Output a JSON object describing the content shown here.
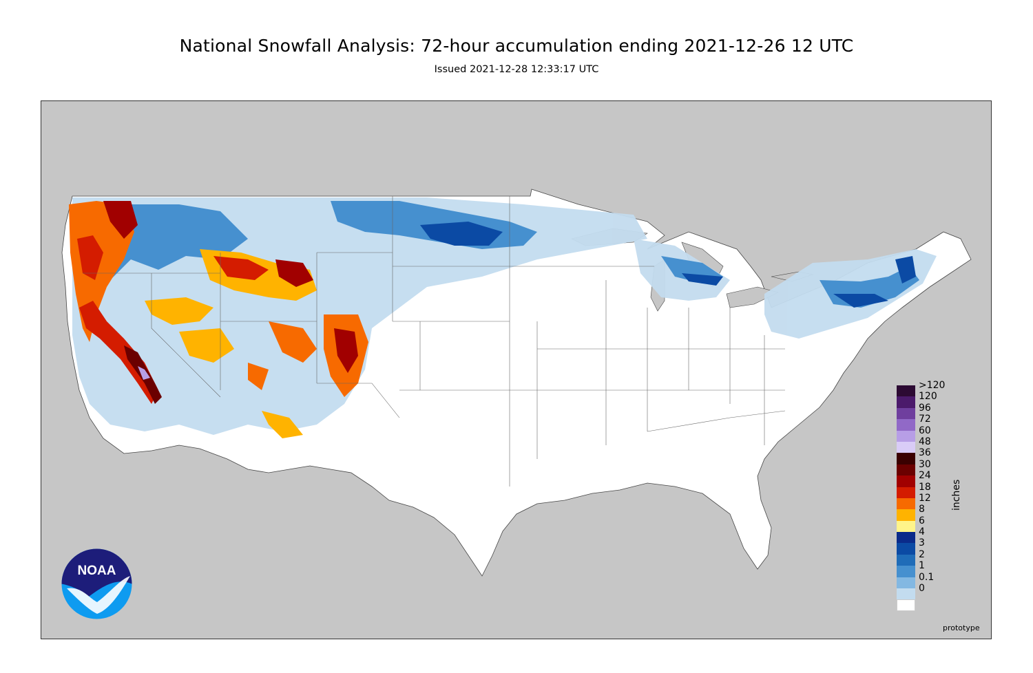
{
  "header": {
    "title": "National Snowfall Analysis: 72-hour accumulation ending 2021-12-26 12 UTC",
    "issued": "Issued 2021-12-28 12:33:17 UTC"
  },
  "map": {
    "land_outside_color": "#c6c6c6",
    "conus_fill_color": "#ffffff",
    "boundary_color": "#555555"
  },
  "logo": {
    "text": "NOAA",
    "colors": {
      "dark": "#1d1d7a",
      "light": "#0e9bf0"
    }
  },
  "legend": {
    "units": "inches",
    "items": [
      {
        "label": ">120",
        "color": "#2c0a33"
      },
      {
        "label": "120",
        "color": "#4b1a6b"
      },
      {
        "label": "96",
        "color": "#6f3f9e"
      },
      {
        "label": "72",
        "color": "#9169c7"
      },
      {
        "label": "60",
        "color": "#b79ee6"
      },
      {
        "label": "48",
        "color": "#d9ccf7"
      },
      {
        "label": "36",
        "color": "#3a0000"
      },
      {
        "label": "30",
        "color": "#6b0000"
      },
      {
        "label": "24",
        "color": "#a10000"
      },
      {
        "label": "18",
        "color": "#d41c00"
      },
      {
        "label": "12",
        "color": "#f76a00"
      },
      {
        "label": "8",
        "color": "#ffb300"
      },
      {
        "label": "6",
        "color": "#fff48a"
      },
      {
        "label": "4",
        "color": "#0a2a8a"
      },
      {
        "label": "3",
        "color": "#0b4aa4"
      },
      {
        "label": "2",
        "color": "#1f6cb8"
      },
      {
        "label": "1",
        "color": "#4690cf"
      },
      {
        "label": "0.1",
        "color": "#83b8e2"
      },
      {
        "label": "0",
        "color": "#c3dcef"
      }
    ],
    "zero_swatch_color": "#e6eff8",
    "base_color": "#ffffff"
  },
  "footer": {
    "prototype": "prototype"
  }
}
